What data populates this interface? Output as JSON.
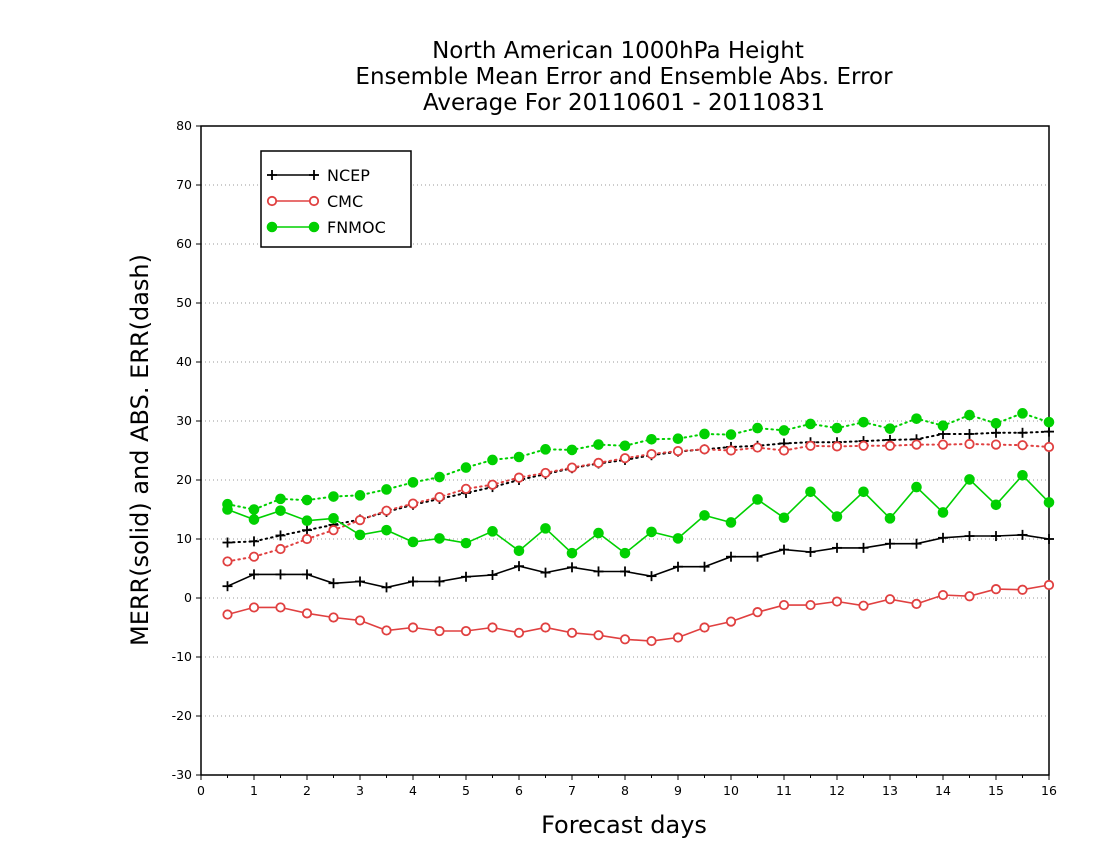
{
  "chart_data": {
    "type": "line",
    "title_lines": [
      "North American 1000hPa Height",
      "Ensemble Mean Error and Ensemble Abs. Error",
      "Average For 20110601 - 20110831"
    ],
    "xlabel": "Forecast days",
    "ylabel": "MERR(solid) and ABS. ERR(dash)",
    "xlim": [
      0,
      16
    ],
    "ylim": [
      -30,
      80
    ],
    "xticks": [
      0,
      1,
      2,
      3,
      4,
      5,
      6,
      7,
      8,
      9,
      10,
      11,
      12,
      13,
      14,
      15,
      16
    ],
    "yticks": [
      -30,
      -20,
      -10,
      0,
      10,
      20,
      30,
      40,
      50,
      60,
      70,
      80
    ],
    "grid": "horizontal dotted",
    "legend_position": "top-left",
    "x": [
      0.5,
      1.0,
      1.5,
      2.0,
      2.5,
      3.0,
      3.5,
      4.0,
      4.5,
      5.0,
      5.5,
      6.0,
      6.5,
      7.0,
      7.5,
      8.0,
      8.5,
      9.0,
      9.5,
      10.0,
      10.5,
      11.0,
      11.5,
      12.0,
      12.5,
      13.0,
      13.5,
      14.0,
      14.5,
      15.0,
      15.5,
      16.0
    ],
    "series": [
      {
        "name": "NCEP",
        "color": "#000000",
        "marker": "plus",
        "merr": [
          2.0,
          4.0,
          4.0,
          4.0,
          2.5,
          2.8,
          1.8,
          2.8,
          2.8,
          3.6,
          3.9,
          5.4,
          4.3,
          5.2,
          4.5,
          4.5,
          3.7,
          5.3,
          5.3,
          7.0,
          7.0,
          8.2,
          7.8,
          8.5,
          8.5,
          9.2,
          9.2,
          10.2,
          10.5,
          10.5,
          10.7,
          10.0
        ],
        "abs_err": [
          9.4,
          9.6,
          10.6,
          11.5,
          12.4,
          13.3,
          14.6,
          15.8,
          16.8,
          17.8,
          18.8,
          20.0,
          21.0,
          22.0,
          22.8,
          23.4,
          24.2,
          24.8,
          25.2,
          25.6,
          25.8,
          26.2,
          26.4,
          26.4,
          26.6,
          26.8,
          26.9,
          27.8,
          27.8,
          28.0,
          28.0,
          28.2
        ]
      },
      {
        "name": "CMC",
        "color": "#e04040",
        "marker": "open-circle",
        "merr": [
          -2.8,
          -1.6,
          -1.6,
          -2.6,
          -3.3,
          -3.8,
          -5.5,
          -5.0,
          -5.6,
          -5.6,
          -5.0,
          -5.9,
          -5.0,
          -5.9,
          -6.3,
          -7.0,
          -7.3,
          -6.7,
          -5.0,
          -4.0,
          -2.4,
          -1.2,
          -1.2,
          -0.6,
          -1.3,
          -0.2,
          -1.0,
          0.5,
          0.3,
          1.5,
          1.4,
          2.2
        ],
        "abs_err": [
          6.2,
          7.0,
          8.3,
          10.0,
          11.5,
          13.2,
          14.8,
          16.0,
          17.1,
          18.5,
          19.2,
          20.4,
          21.2,
          22.1,
          22.9,
          23.7,
          24.4,
          24.9,
          25.2,
          25.0,
          25.5,
          25.0,
          25.8,
          25.7,
          25.8,
          25.8,
          26.0,
          26.0,
          26.1,
          26.0,
          25.9,
          25.6
        ]
      },
      {
        "name": "FNMOC",
        "color": "#00d000",
        "marker": "filled-circle",
        "merr": [
          15.0,
          13.3,
          14.8,
          13.1,
          13.5,
          10.7,
          11.5,
          9.5,
          10.1,
          9.3,
          11.3,
          8.0,
          11.8,
          7.6,
          11.0,
          7.6,
          11.2,
          10.1,
          14.0,
          12.8,
          16.7,
          13.6,
          18.0,
          13.8,
          18.0,
          13.5,
          18.8,
          14.5,
          20.1,
          15.8,
          20.8,
          16.2
        ],
        "abs_err": [
          15.9,
          15.0,
          16.8,
          16.6,
          17.2,
          17.4,
          18.4,
          19.6,
          20.5,
          22.1,
          23.4,
          23.9,
          25.2,
          25.1,
          26.0,
          25.8,
          26.9,
          27.0,
          27.8,
          27.7,
          28.8,
          28.4,
          29.5,
          28.8,
          29.8,
          28.7,
          30.4,
          29.2,
          31.0,
          29.6,
          31.3,
          29.8
        ]
      }
    ]
  }
}
